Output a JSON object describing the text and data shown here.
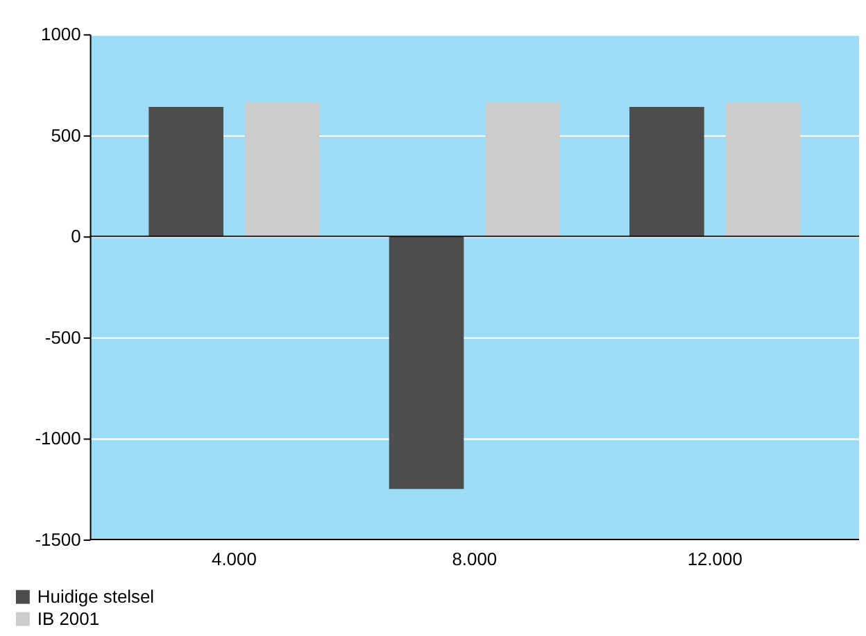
{
  "chart_data": {
    "type": "bar",
    "categories": [
      "4.000",
      "8.000",
      "12.000"
    ],
    "series": [
      {
        "name": "Huidige stelsel",
        "color": "#4d4d4d",
        "values": [
          640,
          -1250,
          640
        ]
      },
      {
        "name": "IB 2001",
        "color": "#cccccc",
        "values": [
          665,
          665,
          665
        ]
      }
    ],
    "ylim": [
      -1500,
      1000
    ],
    "yticks": [
      -1500,
      -1000,
      -500,
      0,
      500,
      1000
    ],
    "grid": "y",
    "legend": "bottom left",
    "ref_lines": [
      {
        "axis": "y",
        "value": 0,
        "color": "#000000"
      }
    ]
  }
}
